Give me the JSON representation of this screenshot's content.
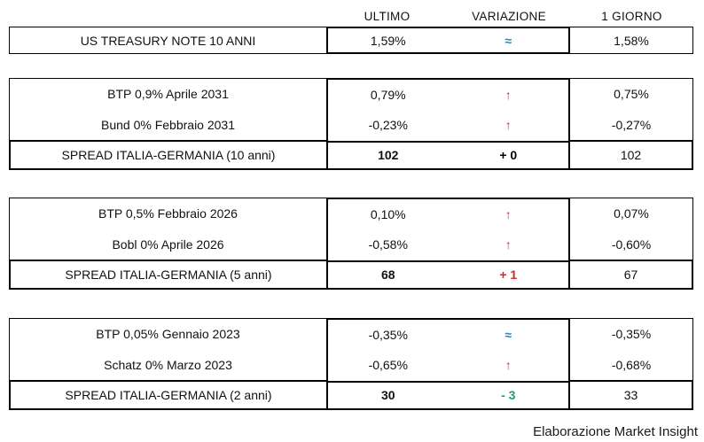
{
  "header": {
    "col_ultimo": "ULTIMO",
    "col_variazione": "VARIAZIONE",
    "col_giorno": "1 GIORNO"
  },
  "colors": {
    "up_red": "#c2322c",
    "steady_blue": "#2386b5",
    "down_green": "#1f9e62",
    "zero_black": "#000000",
    "border_black": "#000000",
    "background": "#ffffff"
  },
  "symbols": {
    "up_arrow": "↑",
    "steady": "≈"
  },
  "groups": [
    {
      "rows": [
        {
          "label": "US TREASURY NOTE 10 ANNI",
          "ultimo": "1,59%",
          "variazione": "≈",
          "trend": "steady",
          "giorno": "1,58%"
        }
      ]
    },
    {
      "rows": [
        {
          "label": "BTP 0,9% Aprile 2031",
          "ultimo": "0,79%",
          "variazione": "↑",
          "trend": "up",
          "giorno": "0,75%"
        },
        {
          "label": "Bund 0% Febbraio 2031",
          "ultimo": "-0,23%",
          "variazione": "↑",
          "trend": "up",
          "giorno": "-0,27%"
        }
      ],
      "spread": {
        "label": "SPREAD ITALIA-GERMANIA (10 anni)",
        "ultimo": "102",
        "variazione": "+ 0",
        "trend": "zero",
        "giorno": "102"
      }
    },
    {
      "rows": [
        {
          "label": "BTP 0,5% Febbraio 2026",
          "ultimo": "0,10%",
          "variazione": "↑",
          "trend": "up",
          "giorno": "0,07%"
        },
        {
          "label": "Bobl 0% Aprile 2026",
          "ultimo": "-0,58%",
          "variazione": "↑",
          "trend": "up",
          "giorno": "-0,60%"
        }
      ],
      "spread": {
        "label": "SPREAD ITALIA-GERMANIA (5 anni)",
        "ultimo": "68",
        "variazione": "+ 1",
        "trend": "up",
        "giorno": "67"
      }
    },
    {
      "rows": [
        {
          "label": "BTP 0,05% Gennaio 2023",
          "ultimo": "-0,35%",
          "variazione": "≈",
          "trend": "steady",
          "giorno": "-0,35%"
        },
        {
          "label": "Schatz 0% Marzo 2023",
          "ultimo": "-0,65%",
          "variazione": "↑",
          "trend": "up",
          "giorno": "-0,68%"
        }
      ],
      "spread": {
        "label": "SPREAD ITALIA-GERMANIA (2 anni)",
        "ultimo": "30",
        "variazione": "- 3",
        "trend": "down",
        "giorno": "33"
      }
    }
  ],
  "footer": {
    "credit": "Elaborazione Market Insight"
  },
  "chart_data": {
    "type": "table",
    "columns": [
      "",
      "ULTIMO",
      "VARIAZIONE",
      "1 GIORNO"
    ],
    "rows": [
      [
        "US TREASURY NOTE 10 ANNI",
        "1,59%",
        "≈",
        "1,58%"
      ],
      [
        "BTP 0,9% Aprile 2031",
        "0,79%",
        "↑",
        "0,75%"
      ],
      [
        "Bund 0% Febbraio 2031",
        "-0,23%",
        "↑",
        "-0,27%"
      ],
      [
        "SPREAD ITALIA-GERMANIA (10 anni)",
        "102",
        "+ 0",
        "102"
      ],
      [
        "BTP 0,5% Febbraio 2026",
        "0,10%",
        "↑",
        "0,07%"
      ],
      [
        "Bobl 0% Aprile 2026",
        "-0,58%",
        "↑",
        "-0,60%"
      ],
      [
        "SPREAD ITALIA-GERMANIA (5 anni)",
        "68",
        "+ 1",
        "67"
      ],
      [
        "BTP 0,05% Gennaio 2023",
        "-0,35%",
        "≈",
        "-0,35%"
      ],
      [
        "Schatz 0% Marzo 2023",
        "-0,65%",
        "↑",
        "-0,68%"
      ],
      [
        "SPREAD ITALIA-GERMANIA (2 anni)",
        "30",
        "- 3",
        "33"
      ]
    ],
    "title": "",
    "footer": "Elaborazione Market Insight"
  }
}
